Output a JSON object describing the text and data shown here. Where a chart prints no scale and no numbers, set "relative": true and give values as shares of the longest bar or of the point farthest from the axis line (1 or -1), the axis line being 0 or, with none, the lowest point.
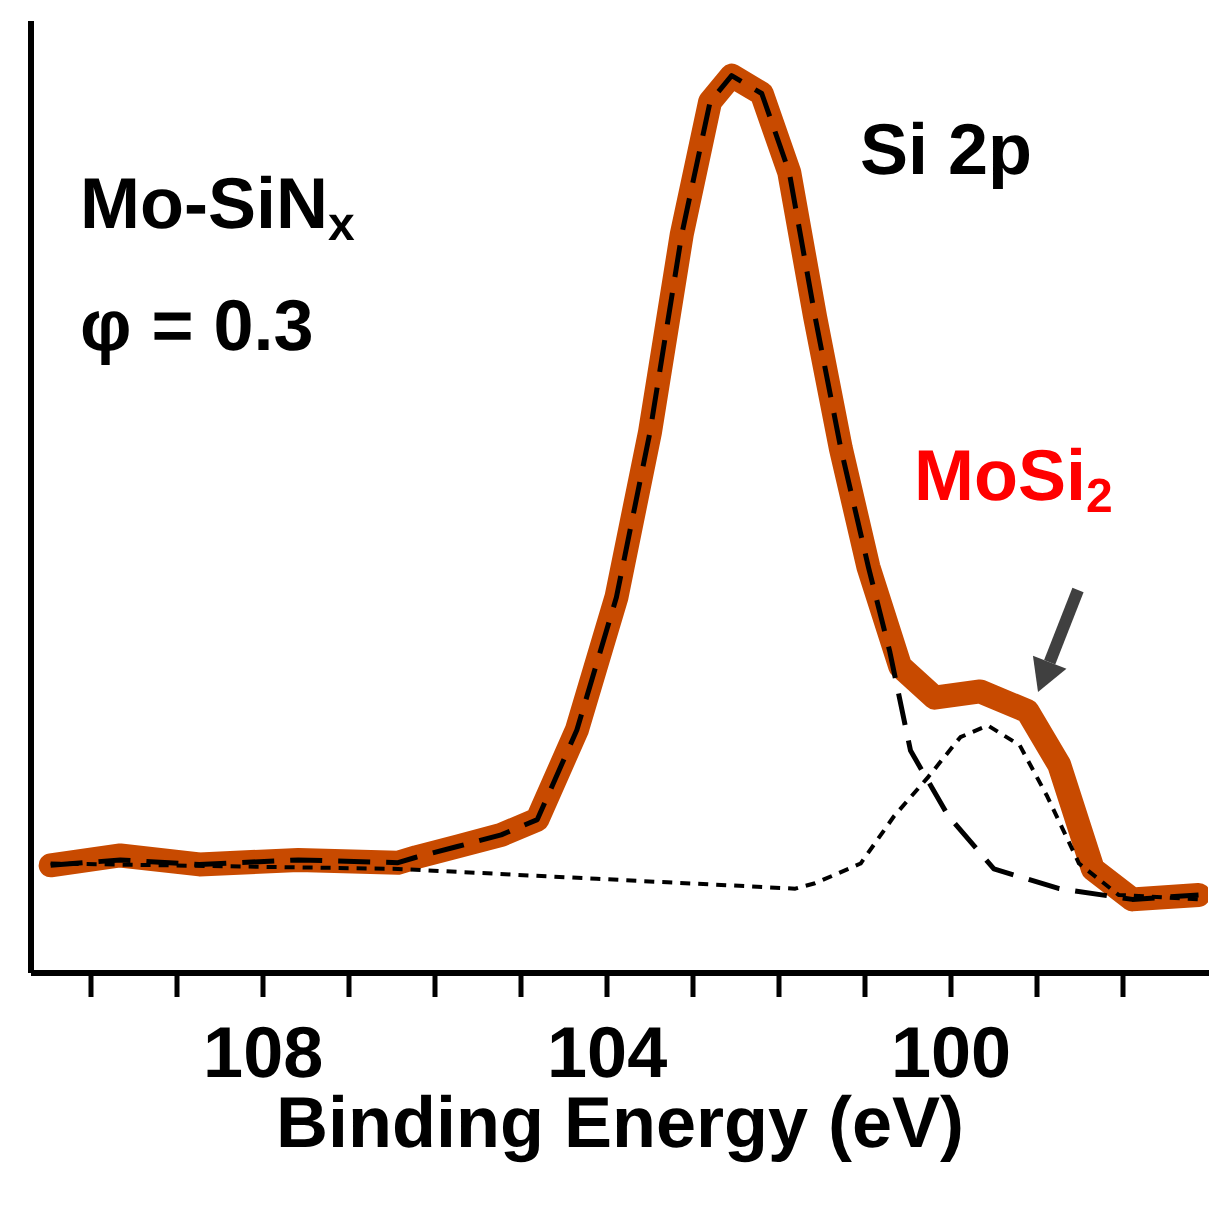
{
  "chart_data": {
    "type": "line",
    "relative": true,
    "xlabel": "Binding Energy (eV)",
    "xlim": [
      110.7,
      97.0
    ],
    "xticks": [
      {
        "value": 110,
        "label": null
      },
      {
        "value": 109,
        "label": null
      },
      108,
      {
        "value": 107,
        "label": null
      },
      {
        "value": 106,
        "label": null
      },
      {
        "value": 105,
        "label": null
      },
      104,
      {
        "value": 103,
        "label": null
      },
      {
        "value": 102,
        "label": null
      },
      {
        "value": 101,
        "label": null
      },
      100,
      {
        "value": 99,
        "label": null
      },
      {
        "value": 98,
        "label": null
      }
    ],
    "series": [
      {
        "color": "#c84a00",
        "line_style": "solid",
        "x": [
          110.46,
          109.65,
          108.73,
          107.58,
          106.42,
          106.21,
          105.73,
          105.22,
          104.8,
          104.34,
          103.88,
          103.49,
          103.12,
          102.79,
          102.54,
          102.19,
          101.87,
          101.57,
          101.27,
          100.95,
          100.58,
          100.18,
          99.65,
          99.1,
          98.73,
          98.34,
          97.88,
          97.11
        ],
        "values": [
          0.119,
          0.13,
          0.12,
          0.125,
          0.122,
          0.128,
          0.14,
          0.153,
          0.17,
          0.27,
          0.418,
          0.602,
          0.823,
          0.971,
          1.0,
          0.98,
          0.892,
          0.731,
          0.584,
          0.452,
          0.341,
          0.306,
          0.313,
          0.291,
          0.231,
          0.115,
          0.081,
          0.086
        ]
      },
      {
        "color": "#000000",
        "line_style": "dashed",
        "x": [
          110.46,
          109.65,
          108.73,
          107.58,
          106.42,
          106.21,
          105.73,
          105.22,
          104.8,
          104.34,
          103.88,
          103.49,
          103.12,
          102.79,
          102.54,
          102.19,
          101.87,
          101.57,
          101.27,
          100.95,
          100.7,
          100.46,
          100.02,
          99.49,
          98.73,
          97.88,
          97.11
        ],
        "values": [
          0.119,
          0.125,
          0.12,
          0.125,
          0.122,
          0.128,
          0.14,
          0.153,
          0.17,
          0.27,
          0.418,
          0.602,
          0.823,
          0.971,
          1.0,
          0.98,
          0.892,
          0.731,
          0.584,
          0.452,
          0.357,
          0.247,
          0.174,
          0.115,
          0.093,
          0.081,
          0.086
        ]
      },
      {
        "color": "#000000",
        "line_style": "dotted",
        "x": [
          110.46,
          106.42,
          104.11,
          101.8,
          101.57,
          101.04,
          100.65,
          100.25,
          99.88,
          99.56,
          99.19,
          98.87,
          98.5,
          98.04,
          97.11
        ],
        "values": [
          0.121,
          0.115,
          0.104,
          0.093,
          0.099,
          0.121,
          0.174,
          0.218,
          0.262,
          0.275,
          0.253,
          0.196,
          0.121,
          0.086,
          0.081
        ]
      }
    ],
    "annotations": [
      "Mo-SiN$_{x}$",
      "φ = 0.3",
      "Si 2p",
      "MoSi$_{2}$"
    ]
  }
}
